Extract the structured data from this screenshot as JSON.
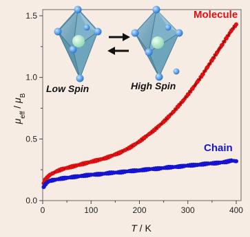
{
  "chart_data": {
    "type": "scatter",
    "xlabel_var": "T",
    "xlabel_unit": "K",
    "ylabel_var": "μ",
    "ylabel_sub": "eff",
    "ylabel_sep": " / ",
    "ylabel_den": "μ",
    "ylabel_den_sub": "B",
    "xlim": [
      0,
      410
    ],
    "ylim": [
      0.0,
      1.55
    ],
    "xticks": [
      "0",
      "100",
      "200",
      "300",
      "400"
    ],
    "yticks": [
      "0.0",
      "0.5",
      "1.0",
      "1.5"
    ],
    "series": [
      {
        "name": "Molecule",
        "color": "#e01010",
        "x": [
          2,
          5,
          10,
          15,
          20,
          30,
          40,
          50,
          60,
          70,
          80,
          90,
          100,
          110,
          120,
          130,
          140,
          150,
          160,
          170,
          180,
          190,
          200,
          210,
          220,
          230,
          240,
          250,
          260,
          270,
          280,
          290,
          300,
          310,
          320,
          330,
          340,
          350,
          360,
          370,
          380,
          390,
          400
        ],
        "y": [
          0.14,
          0.17,
          0.19,
          0.21,
          0.22,
          0.24,
          0.255,
          0.265,
          0.275,
          0.285,
          0.295,
          0.305,
          0.315,
          0.325,
          0.335,
          0.345,
          0.36,
          0.375,
          0.39,
          0.41,
          0.43,
          0.455,
          0.48,
          0.51,
          0.54,
          0.57,
          0.605,
          0.64,
          0.68,
          0.72,
          0.765,
          0.81,
          0.86,
          0.91,
          0.965,
          1.02,
          1.08,
          1.14,
          1.2,
          1.26,
          1.32,
          1.38,
          1.43
        ]
      },
      {
        "name": "Chain",
        "color": "#1515d0",
        "x": [
          2,
          5,
          10,
          15,
          20,
          40,
          60,
          80,
          100,
          120,
          140,
          160,
          180,
          200,
          220,
          240,
          260,
          280,
          300,
          320,
          340,
          360,
          380,
          390,
          400
        ],
        "y": [
          0.11,
          0.13,
          0.15,
          0.16,
          0.165,
          0.18,
          0.19,
          0.2,
          0.21,
          0.215,
          0.225,
          0.23,
          0.24,
          0.245,
          0.255,
          0.26,
          0.27,
          0.275,
          0.285,
          0.29,
          0.3,
          0.305,
          0.315,
          0.325,
          0.32
        ]
      }
    ],
    "annotations": {
      "low_spin": "Low Spin",
      "high_spin": "High Spin"
    },
    "grid": false
  }
}
